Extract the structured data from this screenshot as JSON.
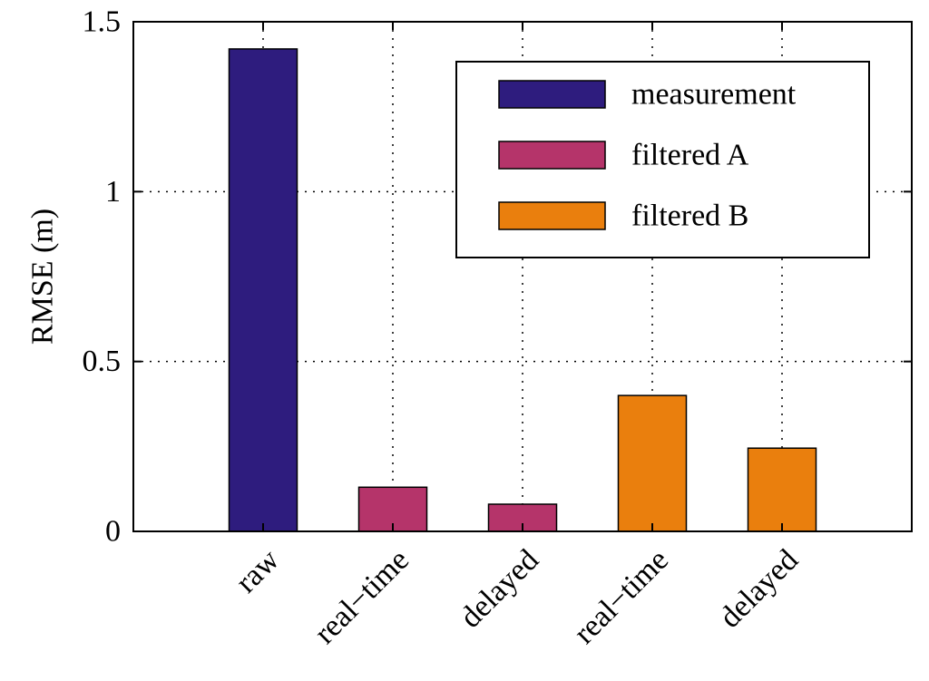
{
  "chart_data": {
    "type": "bar",
    "title": "",
    "xlabel": "",
    "ylabel": "RMSE (m)",
    "ylim": [
      0,
      1.5
    ],
    "yticks": [
      {
        "value": 0,
        "label": "0"
      },
      {
        "value": 0.5,
        "label": "0.5"
      },
      {
        "value": 1,
        "label": "1"
      },
      {
        "value": 1.5,
        "label": "1.5"
      }
    ],
    "grid": true,
    "legend_position": "top-right",
    "categories": [
      "raw",
      "real−time",
      "delayed",
      "real−time",
      "delayed"
    ],
    "series": [
      {
        "name": "measurement",
        "color": "#2e1c7e",
        "values": [
          1.42,
          null,
          null,
          null,
          null
        ]
      },
      {
        "name": "filtered A",
        "color": "#b5346a",
        "values": [
          null,
          0.13,
          0.08,
          null,
          null
        ]
      },
      {
        "name": "filtered B",
        "color": "#ea7f0d",
        "values": [
          null,
          null,
          null,
          0.4,
          0.245
        ]
      }
    ]
  }
}
